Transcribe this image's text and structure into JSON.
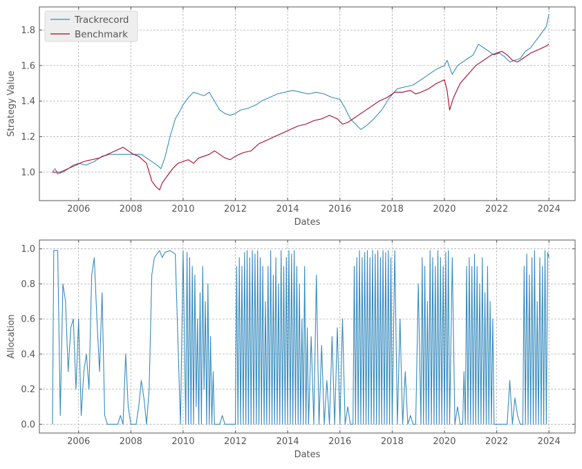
{
  "colors": {
    "trackrecord": "#348ABD",
    "benchmark": "#A60628"
  },
  "chart_data": [
    {
      "type": "line",
      "xlabel": "Dates",
      "ylabel": "Strategy Value",
      "xlim": [
        2004.5,
        2025.0
      ],
      "ylim": [
        0.84,
        1.93
      ],
      "x_ticks": [
        2006,
        2008,
        2010,
        2012,
        2014,
        2016,
        2018,
        2020,
        2022,
        2024
      ],
      "x_tick_labels": [
        "2006",
        "2008",
        "2010",
        "2012",
        "2014",
        "2016",
        "2018",
        "2020",
        "2022",
        "2024"
      ],
      "y_ticks": [
        1.0,
        1.2,
        1.4,
        1.6,
        1.8
      ],
      "y_tick_labels": [
        "1.0",
        "1.2",
        "1.4",
        "1.6",
        "1.8"
      ],
      "grid": true,
      "legend": "top-left",
      "series": [
        {
          "name": "Trackrecord",
          "color": "#348ABD",
          "x": [
            2005.0,
            2005.1,
            2005.2,
            2005.4,
            2005.6,
            2005.8,
            2006.0,
            2006.3,
            2006.6,
            2006.9,
            2007.2,
            2007.5,
            2007.8,
            2008.1,
            2008.4,
            2008.7,
            2009.0,
            2009.15,
            2009.3,
            2009.5,
            2009.7,
            2009.9,
            2010.0,
            2010.2,
            2010.4,
            2010.6,
            2010.8,
            2011.0,
            2011.2,
            2011.4,
            2011.6,
            2011.8,
            2012.0,
            2012.2,
            2012.5,
            2012.8,
            2013.0,
            2013.3,
            2013.6,
            2013.9,
            2014.2,
            2014.5,
            2014.8,
            2015.1,
            2015.4,
            2015.7,
            2016.0,
            2016.2,
            2016.4,
            2016.6,
            2016.8,
            2017.0,
            2017.3,
            2017.6,
            2017.9,
            2018.2,
            2018.5,
            2018.8,
            2019.1,
            2019.4,
            2019.7,
            2020.0,
            2020.1,
            2020.3,
            2020.5,
            2020.7,
            2020.9,
            2021.1,
            2021.3,
            2021.5,
            2021.7,
            2021.9,
            2022.1,
            2022.3,
            2022.5,
            2022.7,
            2022.9,
            2023.1,
            2023.3,
            2023.5,
            2023.7,
            2023.9,
            2024.0
          ],
          "values": [
            1.0,
            1.02,
            0.99,
            1.0,
            1.02,
            1.04,
            1.05,
            1.04,
            1.06,
            1.09,
            1.1,
            1.1,
            1.1,
            1.1,
            1.1,
            1.07,
            1.04,
            1.02,
            1.08,
            1.2,
            1.3,
            1.35,
            1.38,
            1.42,
            1.45,
            1.44,
            1.43,
            1.45,
            1.4,
            1.35,
            1.33,
            1.32,
            1.33,
            1.35,
            1.36,
            1.38,
            1.4,
            1.42,
            1.44,
            1.45,
            1.46,
            1.45,
            1.44,
            1.45,
            1.44,
            1.42,
            1.41,
            1.36,
            1.3,
            1.27,
            1.24,
            1.26,
            1.3,
            1.35,
            1.42,
            1.47,
            1.48,
            1.49,
            1.52,
            1.55,
            1.58,
            1.6,
            1.63,
            1.55,
            1.6,
            1.62,
            1.64,
            1.66,
            1.72,
            1.7,
            1.68,
            1.66,
            1.67,
            1.65,
            1.62,
            1.63,
            1.64,
            1.68,
            1.7,
            1.74,
            1.78,
            1.82,
            1.89
          ]
        },
        {
          "name": "Benchmark",
          "color": "#A60628",
          "x": [
            2005.0,
            2005.3,
            2005.6,
            2005.9,
            2006.2,
            2006.5,
            2006.8,
            2007.1,
            2007.4,
            2007.7,
            2007.9,
            2008.1,
            2008.3,
            2008.6,
            2008.8,
            2008.95,
            2009.1,
            2009.2,
            2009.4,
            2009.6,
            2009.8,
            2010.0,
            2010.2,
            2010.4,
            2010.6,
            2010.8,
            2011.0,
            2011.2,
            2011.4,
            2011.6,
            2011.8,
            2012.0,
            2012.3,
            2012.6,
            2012.9,
            2013.2,
            2013.5,
            2013.8,
            2014.1,
            2014.4,
            2014.7,
            2015.0,
            2015.3,
            2015.6,
            2015.9,
            2016.1,
            2016.3,
            2016.6,
            2016.9,
            2017.2,
            2017.5,
            2017.8,
            2018.1,
            2018.4,
            2018.7,
            2018.9,
            2019.1,
            2019.4,
            2019.7,
            2020.0,
            2020.1,
            2020.2,
            2020.35,
            2020.6,
            2020.9,
            2021.2,
            2021.5,
            2021.8,
            2022.0,
            2022.2,
            2022.4,
            2022.6,
            2022.8,
            2023.0,
            2023.3,
            2023.6,
            2023.9,
            2024.0
          ],
          "values": [
            1.0,
            1.0,
            1.02,
            1.04,
            1.06,
            1.07,
            1.08,
            1.1,
            1.12,
            1.14,
            1.12,
            1.1,
            1.09,
            1.05,
            0.95,
            0.92,
            0.9,
            0.94,
            0.98,
            1.02,
            1.05,
            1.06,
            1.07,
            1.05,
            1.08,
            1.09,
            1.1,
            1.12,
            1.1,
            1.08,
            1.07,
            1.09,
            1.11,
            1.12,
            1.16,
            1.18,
            1.2,
            1.22,
            1.24,
            1.26,
            1.27,
            1.29,
            1.3,
            1.32,
            1.3,
            1.27,
            1.28,
            1.31,
            1.34,
            1.37,
            1.4,
            1.42,
            1.45,
            1.45,
            1.46,
            1.44,
            1.45,
            1.47,
            1.5,
            1.52,
            1.46,
            1.35,
            1.42,
            1.5,
            1.55,
            1.6,
            1.63,
            1.66,
            1.67,
            1.68,
            1.66,
            1.63,
            1.62,
            1.64,
            1.67,
            1.69,
            1.71,
            1.72
          ]
        }
      ]
    },
    {
      "type": "line",
      "xlabel": "Dates",
      "ylabel": "Allocation",
      "xlim": [
        2004.5,
        2025.0
      ],
      "ylim": [
        -0.05,
        1.05
      ],
      "x_ticks": [
        2006,
        2008,
        2010,
        2012,
        2014,
        2016,
        2018,
        2020,
        2022,
        2024
      ],
      "x_tick_labels": [
        "2006",
        "2008",
        "2010",
        "2012",
        "2014",
        "2016",
        "2018",
        "2020",
        "2022",
        "2024"
      ],
      "y_ticks": [
        0.0,
        0.2,
        0.4,
        0.6,
        0.8,
        1.0
      ],
      "y_tick_labels": [
        "0.0",
        "0.2",
        "0.4",
        "0.6",
        "0.8",
        "1.0"
      ],
      "grid": true,
      "series": [
        {
          "color": "#348ABD",
          "x": [
            2005.0,
            2005.05,
            2005.2,
            2005.3,
            2005.4,
            2005.5,
            2005.6,
            2005.7,
            2005.8,
            2005.9,
            2006.0,
            2006.1,
            2006.2,
            2006.3,
            2006.4,
            2006.5,
            2006.6,
            2006.7,
            2006.8,
            2006.9,
            2007.0,
            2007.1,
            2007.2,
            2007.3,
            2007.4,
            2007.5,
            2007.6,
            2007.7,
            2007.8,
            2007.9,
            2008.0,
            2008.1,
            2008.2,
            2008.3,
            2008.4,
            2008.5,
            2008.6,
            2008.7,
            2008.8,
            2008.9,
            2009.0,
            2009.1,
            2009.2,
            2009.3,
            2009.5,
            2009.7,
            2009.9,
            2010.0,
            2010.1,
            2010.15,
            2010.2,
            2010.25,
            2010.3,
            2010.35,
            2010.4,
            2010.45,
            2010.5,
            2010.55,
            2010.6,
            2010.65,
            2010.7,
            2010.75,
            2010.8,
            2010.85,
            2010.9,
            2010.95,
            2011.0,
            2011.05,
            2011.1,
            2011.15,
            2011.2,
            2011.3,
            2011.4,
            2011.5,
            2011.6,
            2011.7,
            2011.8,
            2011.9,
            2012.0,
            2012.05,
            2012.1,
            2012.15,
            2012.2,
            2012.25,
            2012.3,
            2012.35,
            2012.4,
            2012.45,
            2012.5,
            2012.55,
            2012.6,
            2012.65,
            2012.7,
            2012.75,
            2012.8,
            2012.85,
            2012.9,
            2012.95,
            2013.0,
            2013.05,
            2013.1,
            2013.15,
            2013.2,
            2013.25,
            2013.3,
            2013.35,
            2013.4,
            2013.45,
            2013.5,
            2013.55,
            2013.6,
            2013.65,
            2013.7,
            2013.75,
            2013.8,
            2013.85,
            2013.9,
            2013.95,
            2014.0,
            2014.05,
            2014.1,
            2014.15,
            2014.2,
            2014.25,
            2014.3,
            2014.35,
            2014.4,
            2014.45,
            2014.5,
            2014.55,
            2014.6,
            2014.65,
            2014.7,
            2014.75,
            2014.8,
            2014.9,
            2015.0,
            2015.1,
            2015.2,
            2015.3,
            2015.4,
            2015.5,
            2015.6,
            2015.7,
            2015.8,
            2015.9,
            2016.0,
            2016.1,
            2016.2,
            2016.3,
            2016.4,
            2016.5,
            2016.55,
            2016.6,
            2016.65,
            2016.7,
            2016.75,
            2016.8,
            2016.85,
            2016.9,
            2016.95,
            2017.0,
            2017.05,
            2017.1,
            2017.15,
            2017.2,
            2017.25,
            2017.3,
            2017.35,
            2017.4,
            2017.45,
            2017.5,
            2017.55,
            2017.6,
            2017.65,
            2017.7,
            2017.75,
            2017.8,
            2017.85,
            2017.9,
            2017.95,
            2018.0,
            2018.1,
            2018.2,
            2018.3,
            2018.4,
            2018.5,
            2018.6,
            2018.7,
            2018.8,
            2018.9,
            2019.0,
            2019.1,
            2019.15,
            2019.2,
            2019.25,
            2019.3,
            2019.35,
            2019.4,
            2019.45,
            2019.5,
            2019.55,
            2019.6,
            2019.65,
            2019.7,
            2019.75,
            2019.8,
            2019.85,
            2019.9,
            2019.95,
            2020.0,
            2020.05,
            2020.1,
            2020.15,
            2020.2,
            2020.3,
            2020.4,
            2020.5,
            2020.6,
            2020.7,
            2020.75,
            2020.8,
            2020.85,
            2020.9,
            2020.95,
            2021.0,
            2021.05,
            2021.1,
            2021.15,
            2021.2,
            2021.25,
            2021.3,
            2021.35,
            2021.4,
            2021.45,
            2021.5,
            2021.55,
            2021.6,
            2021.65,
            2021.7,
            2021.75,
            2021.8,
            2021.85,
            2021.9,
            2022.0,
            2022.2,
            2022.4,
            2022.5,
            2022.6,
            2022.7,
            2022.8,
            2022.9,
            2023.0,
            2023.05,
            2023.1,
            2023.15,
            2023.2,
            2023.25,
            2023.3,
            2023.35,
            2023.4,
            2023.45,
            2023.5,
            2023.55,
            2023.6,
            2023.65,
            2023.7,
            2023.75,
            2023.8,
            2023.85,
            2023.9,
            2023.95,
            2024.0
          ],
          "values": [
            0.0,
            0.99,
            0.99,
            0.05,
            0.8,
            0.7,
            0.3,
            0.55,
            0.6,
            0.2,
            0.6,
            0.05,
            0.3,
            0.4,
            0.2,
            0.85,
            0.95,
            0.6,
            0.3,
            0.75,
            0.05,
            0.0,
            0.0,
            0.0,
            0.0,
            0.0,
            0.05,
            0.0,
            0.4,
            0.1,
            0.0,
            0.0,
            0.0,
            0.1,
            0.25,
            0.15,
            0.0,
            0.2,
            0.85,
            0.95,
            0.97,
            0.99,
            0.95,
            0.98,
            0.99,
            0.97,
            0.0,
            0.99,
            0.0,
            0.98,
            0.0,
            0.95,
            0.0,
            0.9,
            0.0,
            0.85,
            0.1,
            0.6,
            0.0,
            0.75,
            0.0,
            0.9,
            0.2,
            0.7,
            0.0,
            0.8,
            0.0,
            0.5,
            0.0,
            0.3,
            0.0,
            0.0,
            0.0,
            0.05,
            0.0,
            0.0,
            0.0,
            0.0,
            0.0,
            0.9,
            0.0,
            0.95,
            0.0,
            0.9,
            0.0,
            0.98,
            0.0,
            0.99,
            0.0,
            0.95,
            0.0,
            0.99,
            0.0,
            0.97,
            0.0,
            0.99,
            0.0,
            0.95,
            0.0,
            0.9,
            0.0,
            0.7,
            0.0,
            0.9,
            0.0,
            0.99,
            0.0,
            0.85,
            0.0,
            0.95,
            0.0,
            0.8,
            0.0,
            0.99,
            0.0,
            0.9,
            0.0,
            0.95,
            0.0,
            0.99,
            0.0,
            0.97,
            0.0,
            0.99,
            0.0,
            0.9,
            0.0,
            0.8,
            0.0,
            0.6,
            0.0,
            0.9,
            0.0,
            0.55,
            0.0,
            0.5,
            0.0,
            0.85,
            0.0,
            0.45,
            0.0,
            0.25,
            0.0,
            0.5,
            0.0,
            0.55,
            0.0,
            0.6,
            0.0,
            0.1,
            0.0,
            0.0,
            0.9,
            0.0,
            0.95,
            0.0,
            0.99,
            0.0,
            0.95,
            0.0,
            0.98,
            0.0,
            0.99,
            0.0,
            0.95,
            0.0,
            0.99,
            0.0,
            0.97,
            0.0,
            0.99,
            0.0,
            0.95,
            0.0,
            0.99,
            0.0,
            0.98,
            0.0,
            0.99,
            0.0,
            0.95,
            0.0,
            0.99,
            0.0,
            0.6,
            0.0,
            0.3,
            0.0,
            0.05,
            0.0,
            0.0,
            0.8,
            0.0,
            0.95,
            0.0,
            0.9,
            0.0,
            0.7,
            0.0,
            0.99,
            0.0,
            0.95,
            0.0,
            0.9,
            0.0,
            0.99,
            0.0,
            0.95,
            0.0,
            0.9,
            0.0,
            0.98,
            0.0,
            0.99,
            0.0,
            0.95,
            0.0,
            0.1,
            0.0,
            0.0,
            0.3,
            0.0,
            0.9,
            0.0,
            0.95,
            0.0,
            0.9,
            0.0,
            0.97,
            0.0,
            0.9,
            0.0,
            0.8,
            0.0,
            0.95,
            0.0,
            0.75,
            0.0,
            0.9,
            0.0,
            0.7,
            0.0,
            0.6,
            0.0,
            0.0,
            0.0,
            0.0,
            0.25,
            0.0,
            0.15,
            0.05,
            0.0,
            0.0,
            0.9,
            0.0,
            0.97,
            0.0,
            0.85,
            0.0,
            0.95,
            0.0,
            0.99,
            0.0,
            0.7,
            0.0,
            0.95,
            0.0,
            0.9,
            0.0,
            0.99,
            0.0,
            0.98,
            0.95
          ]
        }
      ]
    }
  ]
}
